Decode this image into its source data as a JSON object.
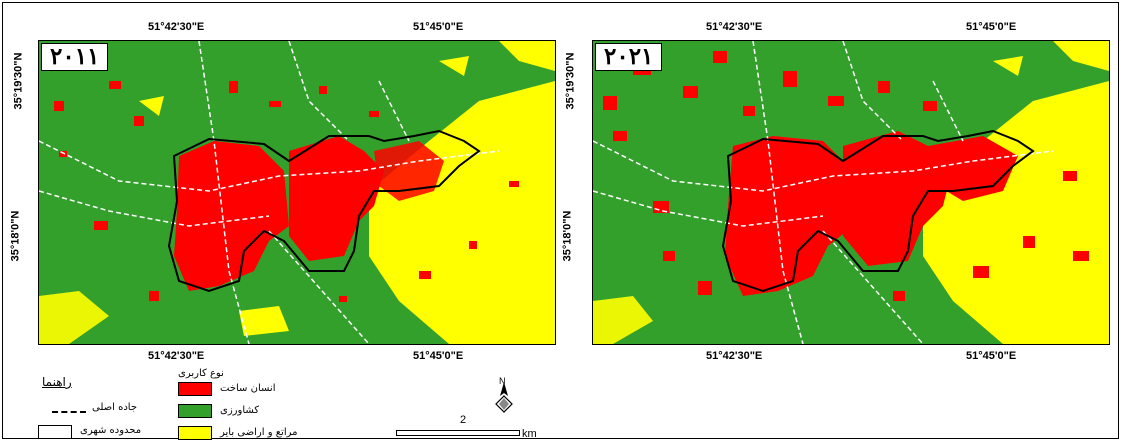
{
  "colors": {
    "agriculture": "#33a02c",
    "built": "#ff0000",
    "bare": "#ffff00",
    "boundary": "#000000",
    "road": "#ffffff"
  },
  "maps": [
    {
      "year_label": "۲۰۱۱"
    },
    {
      "year_label": "۲۰۲۱"
    }
  ],
  "coords": {
    "lon_left": "51°42'30\"E",
    "lon_right": "51°45'0\"E",
    "lat_top": "35°19'30\"N",
    "lat_bottom": "35°18'0\"N"
  },
  "legend": {
    "guide_title": "راهنما",
    "main_road": "جاده اصلی",
    "urban_boundary": "محدوده شهری",
    "landuse_title": "نوع کاربری",
    "built_up": "انسان ساخت",
    "agriculture": "کشاورزی",
    "rangeland": "مراتع و اراضی بایر"
  },
  "scale": {
    "value": "2",
    "unit": "km"
  },
  "north_label": "N"
}
